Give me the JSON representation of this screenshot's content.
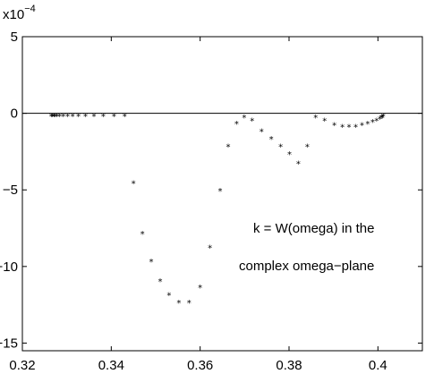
{
  "chart_data": {
    "type": "scatter",
    "title": "",
    "xlabel": "",
    "ylabel": "",
    "xlim": [
      0.32,
      0.41
    ],
    "ylim": [
      -15.5,
      5
    ],
    "y_scale_label": "x10",
    "y_scale_exponent": "−4",
    "x_ticks": [
      0.32,
      0.34,
      0.36,
      0.38,
      0.4
    ],
    "x_tick_labels": [
      "0.32",
      "0.34",
      "0.36",
      "0.38",
      "0.4"
    ],
    "y_ticks": [
      5,
      0,
      -5,
      -10,
      -15
    ],
    "y_tick_labels": [
      "5",
      "0",
      "−5",
      "−10",
      "−15"
    ],
    "zero_line": true,
    "grid": false,
    "marker": "*",
    "annotation_lines": [
      "k = W(omega) in the",
      "complex omega−plane"
    ],
    "series": [
      {
        "x": [
          0.3265,
          0.3268,
          0.3271,
          0.3274,
          0.3278,
          0.3284,
          0.3292,
          0.3302,
          0.3313,
          0.3326,
          0.3342,
          0.3361,
          0.3382,
          0.3406,
          0.343,
          0.345,
          0.347,
          0.349,
          0.351,
          0.353,
          0.3552,
          0.3575,
          0.36,
          0.3622,
          0.3645,
          0.3663,
          0.3682,
          0.3699,
          0.3717,
          0.3738,
          0.376,
          0.3781,
          0.3801,
          0.3821,
          0.3841,
          0.386,
          0.388,
          0.3902,
          0.392,
          0.3935,
          0.395,
          0.3964,
          0.3977,
          0.3988,
          0.3997,
          0.4004,
          0.4008,
          0.401,
          0.4012
        ],
        "y": [
          -0.1,
          -0.1,
          -0.1,
          -0.1,
          -0.1,
          -0.1,
          -0.1,
          -0.1,
          -0.1,
          -0.1,
          -0.1,
          -0.1,
          -0.1,
          -0.1,
          -0.1,
          -4.5,
          -7.8,
          -9.6,
          -10.9,
          -11.8,
          -12.3,
          -12.3,
          -11.3,
          -8.7,
          -5.0,
          -2.1,
          -0.6,
          -0.2,
          -0.4,
          -1.1,
          -1.6,
          -2.1,
          -2.6,
          -3.2,
          -2.1,
          -0.2,
          -0.4,
          -0.7,
          -0.8,
          -0.8,
          -0.8,
          -0.7,
          -0.6,
          -0.5,
          -0.4,
          -0.3,
          -0.2,
          -0.2,
          -0.1
        ]
      }
    ]
  }
}
